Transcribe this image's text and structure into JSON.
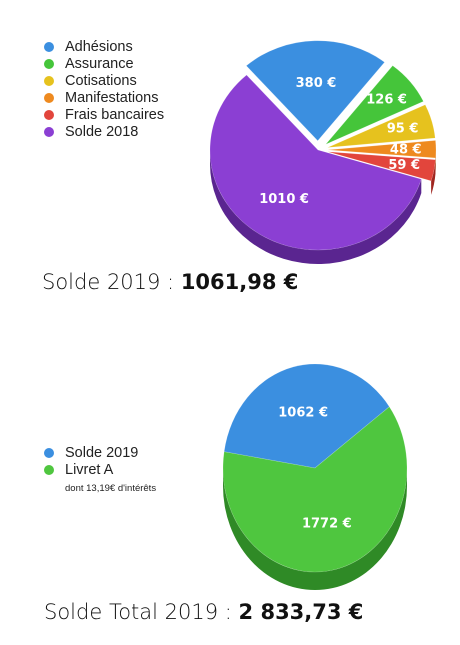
{
  "chart_data": [
    {
      "type": "pie",
      "legend_position": "left",
      "slices": [
        {
          "name": "Adhésions",
          "value": 380,
          "label": "380 €",
          "color": "#3b8fe0",
          "side": "#2466a8"
        },
        {
          "name": "Assurance",
          "value": 126,
          "label": "126 €",
          "color": "#45c53a",
          "side": "#2e8f27"
        },
        {
          "name": "Cotisations",
          "value": 95,
          "label": "95 €",
          "color": "#e6c21e",
          "side": "#a8870c"
        },
        {
          "name": "Manifestations",
          "value": 48,
          "label": "48 €",
          "color": "#ee8a1f",
          "side": "#b05f10"
        },
        {
          "name": "Frais bancaires",
          "value": 59,
          "label": "59 €",
          "color": "#e2453c",
          "side": "#a02620"
        },
        {
          "name": "Solde 2018",
          "value": 1010,
          "label": "1010 €",
          "color": "#8b3fd3",
          "side": "#5a2590"
        }
      ],
      "total_label": "Solde 2019 : ",
      "total_value": "1061,98 €"
    },
    {
      "type": "pie",
      "legend_position": "left",
      "slices": [
        {
          "name": "Solde 2019",
          "value": 1062,
          "label": "1062 €",
          "color": "#3b8fe0",
          "side": "#2466a8"
        },
        {
          "name": "Livret A",
          "value": 1772,
          "label": "1772 €",
          "color": "#4fc63f",
          "side": "#2f8a26"
        }
      ],
      "note": "dont 13,19€ d'intérêts",
      "total_label": "Solde Total 2019 : ",
      "total_value": "2 833,73 €"
    }
  ]
}
